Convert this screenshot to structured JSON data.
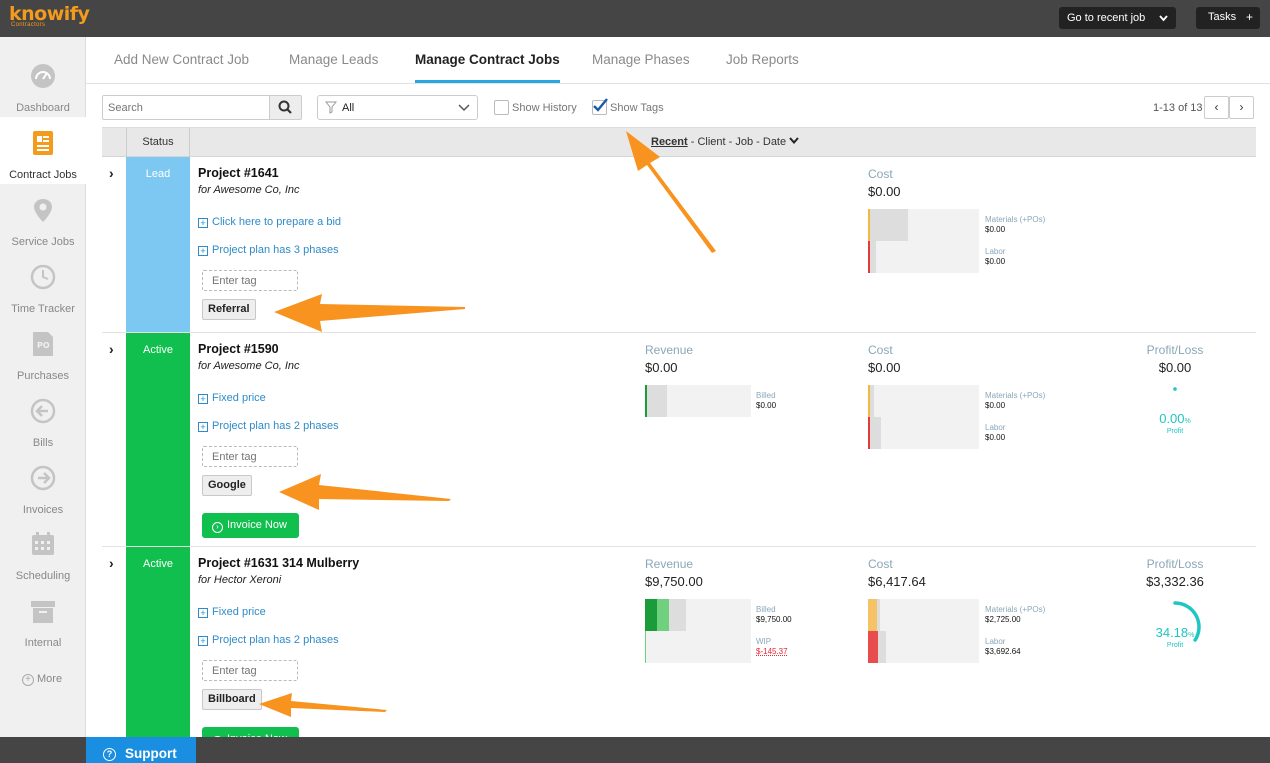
{
  "brand": {
    "name": "knowify",
    "sub": "Contractors"
  },
  "topbar": {
    "recent_job": "Go to recent job",
    "tasks": "Tasks",
    "plus": "+"
  },
  "sidebar": {
    "items": [
      {
        "label": "Dashboard",
        "icon": "dashboard-gauge-icon"
      },
      {
        "label": "Contract Jobs",
        "icon": "contract-document-icon",
        "active": true
      },
      {
        "label": "Service Jobs",
        "icon": "location-pin-icon"
      },
      {
        "label": "Time Tracker",
        "icon": "clock-icon"
      },
      {
        "label": "Purchases",
        "icon": "po-document-icon"
      },
      {
        "label": "Bills",
        "icon": "arrow-left-circle-icon"
      },
      {
        "label": "Invoices",
        "icon": "arrow-right-circle-icon"
      },
      {
        "label": "Scheduling",
        "icon": "calendar-icon"
      },
      {
        "label": "Internal",
        "icon": "archive-box-icon"
      }
    ],
    "more": "More"
  },
  "tabs": [
    {
      "label": "Add New Contract Job"
    },
    {
      "label": "Manage Leads"
    },
    {
      "label": "Manage Contract Jobs",
      "active": true
    },
    {
      "label": "Manage Phases"
    },
    {
      "label": "Job Reports"
    }
  ],
  "toolbar": {
    "search_placeholder": "Search",
    "filter_value": "All",
    "show_history": "Show History",
    "show_history_checked": false,
    "show_tags": "Show Tags",
    "show_tags_checked": true,
    "pager": "1-13 of 13",
    "prev": "‹",
    "next": "›"
  },
  "table_header": {
    "status": "Status",
    "sort_active": "Recent",
    "sort_rest": " - Client - Job - Date"
  },
  "labels": {
    "revenue": "Revenue",
    "cost": "Cost",
    "profit_loss": "Profit/Loss",
    "materials": "Materials (+POs)",
    "labor": "Labor",
    "billed": "Billed",
    "wip": "WIP",
    "profit": "Profit",
    "tag_placeholder": "Enter tag",
    "invoice_now": "Invoice Now"
  },
  "rows": [
    {
      "status": "Lead",
      "status_color": "#7cc8f3",
      "title": "Project #1641",
      "client": "for Awesome Co, Inc",
      "links": [
        "Click here to prepare a bid",
        "Project plan has 3 phases"
      ],
      "tag": "Referral",
      "cost": "$0.00",
      "materials": "$0.00",
      "labor": "$0.00"
    },
    {
      "status": "Active",
      "status_color": "#11bf4f",
      "title": "Project #1590",
      "client": "for Awesome Co, Inc",
      "links": [
        "Fixed price",
        "Project plan has 2 phases"
      ],
      "tag": "Google",
      "revenue": "$0.00",
      "billed": "$0.00",
      "cost": "$0.00",
      "materials": "$0.00",
      "labor": "$0.00",
      "profit_loss": "$0.00",
      "profit_pct": "0.00",
      "pct_sign": "%",
      "profit_ratio": 0
    },
    {
      "status": "Active",
      "status_color": "#11bf4f",
      "title": "Project #1631 314 Mulberry",
      "client": "for Hector Xeroni",
      "links": [
        "Fixed price",
        "Project plan has 2 phases"
      ],
      "tag": "Billboard",
      "revenue": "$9,750.00",
      "billed": "$9,750.00",
      "wip": "$-145.37",
      "cost": "$6,417.64",
      "materials": "$2,725.00",
      "labor": "$3,692.64",
      "profit_loss": "$3,332.36",
      "profit_pct": "34.18",
      "pct_sign": "%",
      "profit_ratio": 0.3418
    }
  ],
  "footer": {
    "support": "Support"
  },
  "colors": {
    "accent": "#29a6e0",
    "brand": "#f49a1c",
    "active_green": "#11bf4f",
    "lead_blue": "#7cc8f3",
    "profit_teal": "#1fc6c2",
    "arrow_orange": "#f7931e"
  }
}
